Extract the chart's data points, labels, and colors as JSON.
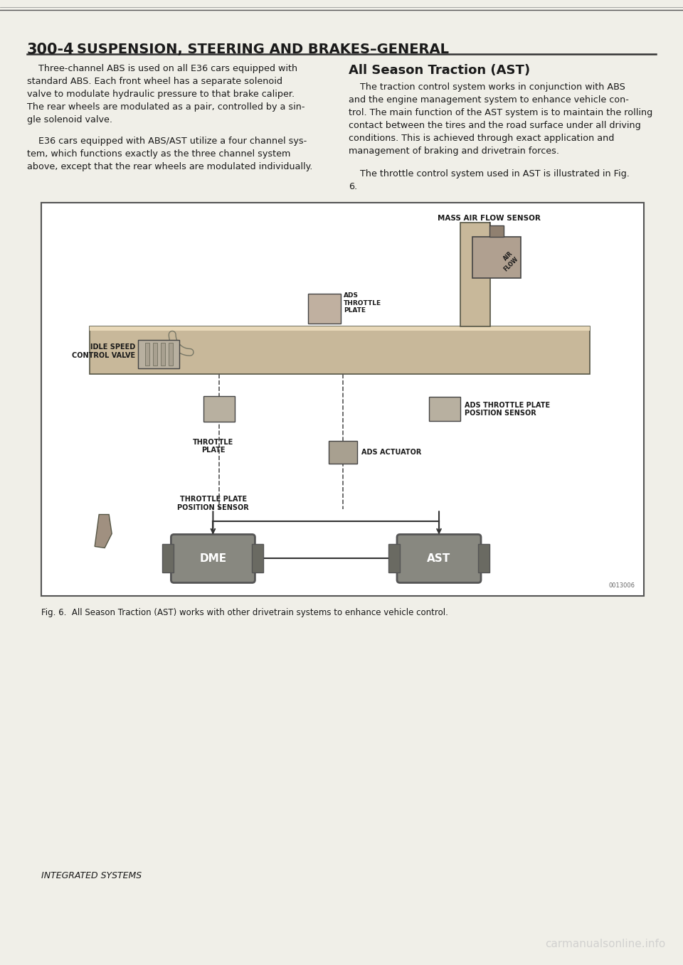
{
  "page_number": "300-4",
  "title": "SUSPENSION, STEERING AND BRAKES–GENERAL",
  "background_color": "#f0efe8",
  "text_color": "#1a1a1a",
  "left_col_p1": "    Three-channel ABS is used on all E36 cars equipped with\nstandard ABS. Each front wheel has a separate solenoid\nvalve to modulate hydraulic pressure to that brake caliper.\nThe rear wheels are modulated as a pair, controlled by a sin-\ngle solenoid valve.",
  "left_col_p2": "    E36 cars equipped with ABS/AST utilize a four channel sys-\ntem, which functions exactly as the three channel system\nabove, except that the rear wheels are modulated individually.",
  "right_col_heading": "All Season Traction (AST)",
  "right_col_p1": "    The traction control system works in conjunction with ABS\nand the engine management system to enhance vehicle con-\ntrol. The main function of the AST system is to maintain the rolling\ncontact between the tires and the road surface under all driving\nconditions. This is achieved through exact application and\nmanagement of braking and drivetrain forces.",
  "right_col_p2": "    The throttle control system used in AST is illustrated in Fig.\n6.",
  "figure_caption": "Fig. 6.  All Season Traction (AST) works with other drivetrain systems to enhance vehicle control.",
  "bottom_text": "INTEGRATED SYSTEMS",
  "watermark": "carmanualsonline.info",
  "diag_id": "0013006",
  "label_mass_air": "MASS AIR FLOW SENSOR",
  "label_ads_throttle": "ADS\nTHROTTLE\nPLATE",
  "label_idle_speed": "IDLE SPEED\nCONTROL VALVE",
  "label_throttle_plate": "THROTTLE\nPLATE",
  "label_ads_throttle_pos": "ADS THROTTLE PLATE\nPOSITION SENSOR",
  "label_ads_actuator": "ADS ACTUATOR",
  "label_throttle_pos": "THROTTLE PLATE\nPOSITION SENSOR",
  "label_dme": "DME",
  "label_ast": "AST",
  "dme_color": "#888880",
  "ast_color": "#888880",
  "pipe_color": "#c8b89a",
  "sensor_color": "#a09080",
  "tab_color": "#6a6a62"
}
